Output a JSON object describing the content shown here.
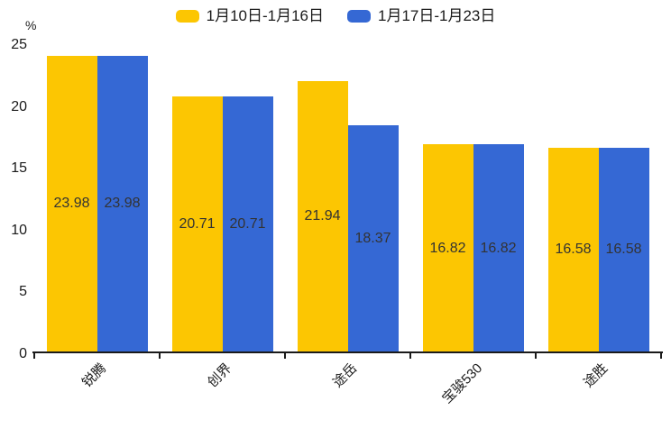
{
  "chart_data": {
    "type": "bar",
    "title": "",
    "xlabel": "",
    "ylabel": "%",
    "categories": [
      "锐腾",
      "创界",
      "途岳",
      "宝骏530",
      "途胜"
    ],
    "series": [
      {
        "name": "1月10日-1月16日",
        "color": "#FCC602",
        "values": [
          23.98,
          20.71,
          21.94,
          16.82,
          16.58
        ]
      },
      {
        "name": "1月17日-1月23日",
        "color": "#3568D4",
        "values": [
          23.98,
          20.71,
          18.37,
          16.82,
          16.58
        ]
      }
    ],
    "ylim": [
      0,
      25
    ],
    "yticks": [
      0,
      5,
      10,
      15,
      20,
      25
    ],
    "grid": false,
    "legend_position": "top",
    "bar_labels_shown": true,
    "bar_label_color": "#333333",
    "axis_color": "#1a1a1a",
    "background_color": "#ffffff"
  }
}
